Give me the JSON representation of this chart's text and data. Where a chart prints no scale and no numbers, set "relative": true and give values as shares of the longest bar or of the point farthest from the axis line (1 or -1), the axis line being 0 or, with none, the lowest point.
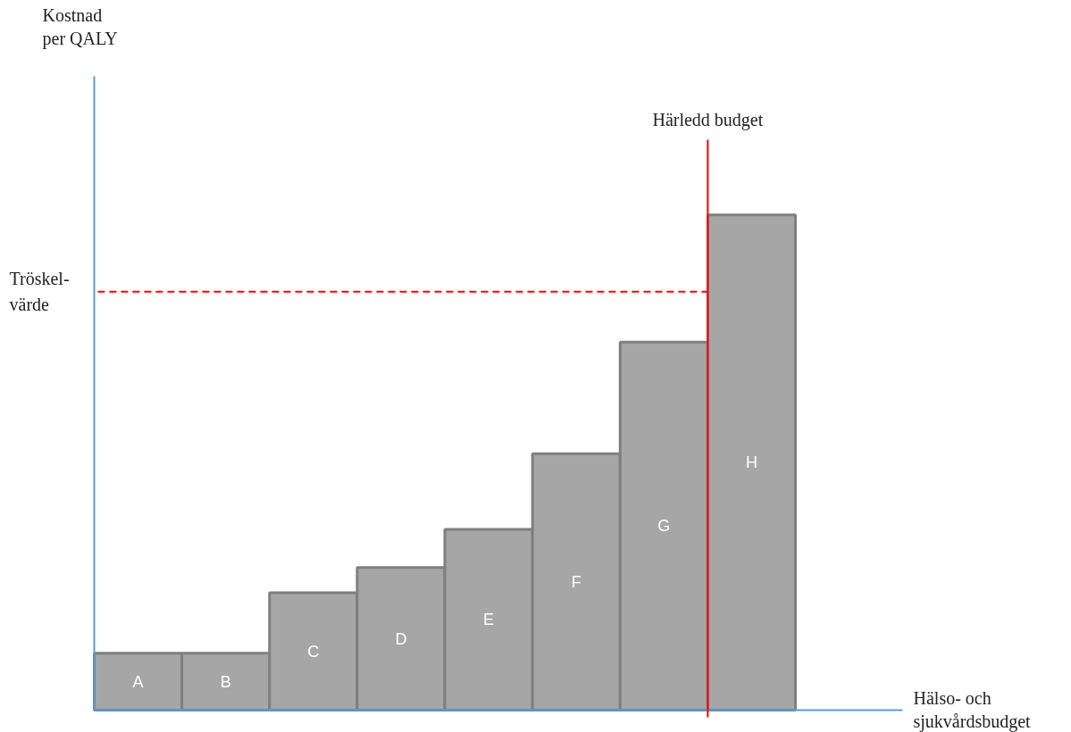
{
  "chart_data": {
    "type": "bar",
    "relative": true,
    "color": "#a6a6a6",
    "categories": [
      "A",
      "B",
      "C",
      "D",
      "E",
      "F",
      "G",
      "H"
    ],
    "values": [
      0.115,
      0.115,
      0.237,
      0.288,
      0.365,
      0.518,
      0.743,
      1
    ],
    "annotations": [
      "Kostnad\nper QALY",
      "Hälso- och\nsjukvårdsbudget"
    ],
    "ref_lines": [
      {
        "axis": "y",
        "value": 0.845,
        "label": "Tröskel-\nvärde",
        "color": "#ff0000",
        "line_style": "dashed"
      },
      {
        "axis": "x",
        "value": "H",
        "label": "Härledd budget",
        "color": "#ff0000",
        "line_style": "solid"
      }
    ],
    "grid": false
  }
}
